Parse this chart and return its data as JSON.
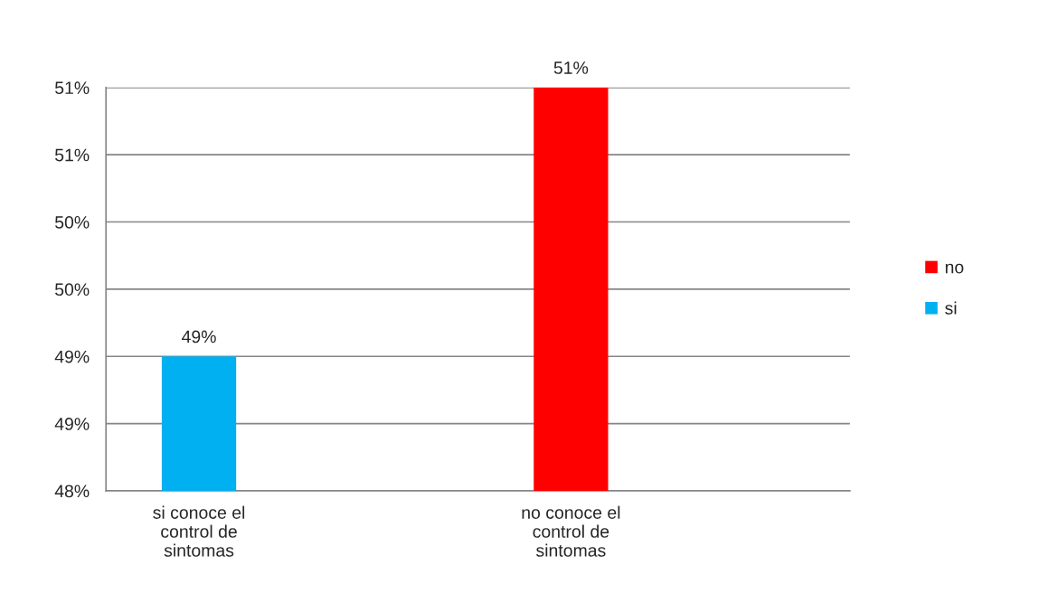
{
  "chart_data": {
    "type": "bar",
    "categories": [
      "si conoce el\ncontrol de\nsintomas",
      null,
      "no conoce el\ncontrol de\nsintomas",
      null
    ],
    "series": [
      {
        "name": "si",
        "color": "#00b0f0",
        "values": [
          49,
          null,
          null,
          null
        ],
        "value_labels": [
          "49%",
          null,
          null,
          null
        ]
      },
      {
        "name": "no",
        "color": "#ff0000",
        "values": [
          null,
          null,
          51,
          null
        ],
        "value_labels": [
          null,
          null,
          "51%",
          null
        ]
      }
    ],
    "ylim": [
      48,
      51
    ],
    "yticks": [
      {
        "value": 48,
        "label": "48%"
      },
      {
        "value": 48.5,
        "label": "49%"
      },
      {
        "value": 49,
        "label": "49%"
      },
      {
        "value": 49.5,
        "label": "50%"
      },
      {
        "value": 50,
        "label": "50%"
      },
      {
        "value": 50.5,
        "label": "51%"
      },
      {
        "value": 51,
        "label": "51%"
      }
    ],
    "grid": "y",
    "legend": "right"
  }
}
